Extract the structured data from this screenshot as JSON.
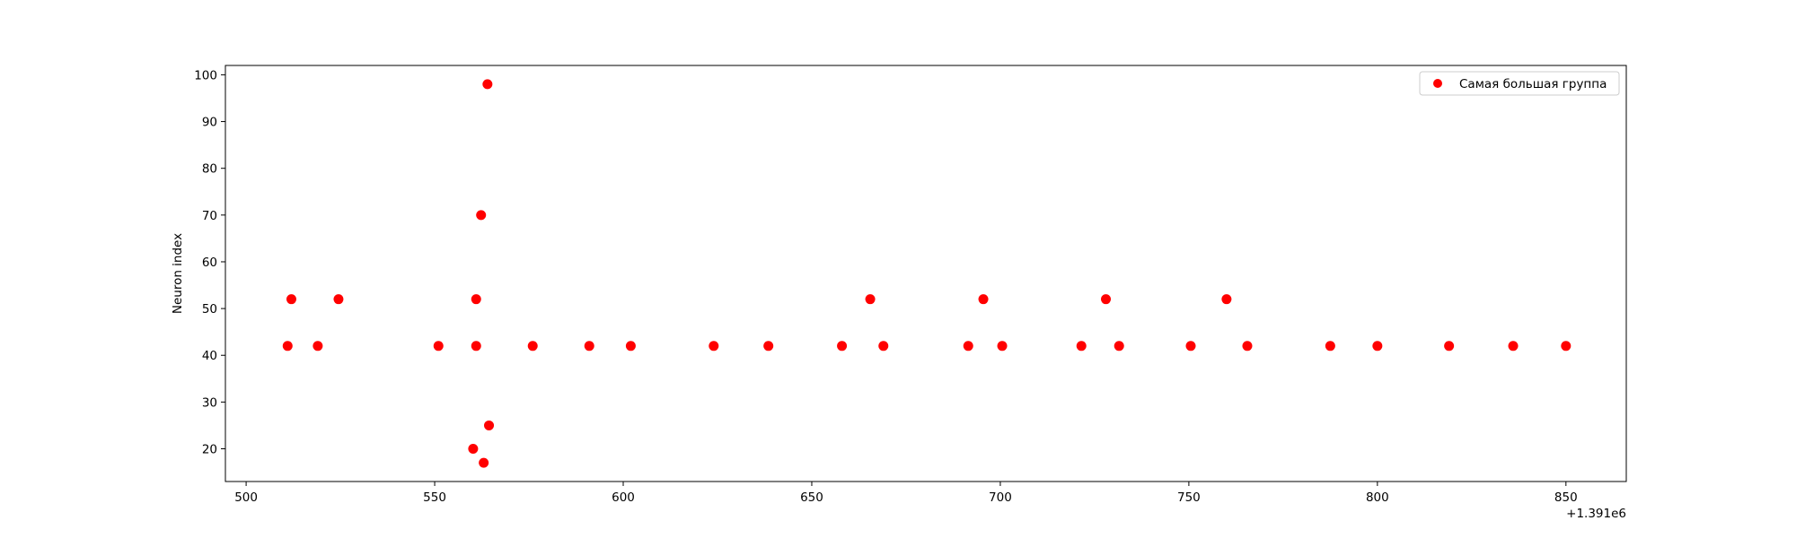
{
  "chart_data": {
    "type": "scatter",
    "title": "",
    "xlabel": "",
    "ylabel": "Neuron index",
    "x_offset_label": "+1.391e6",
    "x_offset": 1391000,
    "xlim": [
      1391494.5,
      1391866
    ],
    "ylim": [
      13,
      102
    ],
    "xticks": [
      500,
      550,
      600,
      650,
      700,
      750,
      800,
      850
    ],
    "yticks": [
      20,
      30,
      40,
      50,
      60,
      70,
      80,
      90,
      100
    ],
    "grid": false,
    "legend_position": "top-right",
    "series": [
      {
        "name": "Самая большая группа",
        "color": "#ff0000",
        "points": [
          {
            "x": 1391511,
            "y": 42
          },
          {
            "x": 1391512,
            "y": 52
          },
          {
            "x": 1391519,
            "y": 42
          },
          {
            "x": 1391524.5,
            "y": 52
          },
          {
            "x": 1391551,
            "y": 42
          },
          {
            "x": 1391560.2,
            "y": 20
          },
          {
            "x": 1391561,
            "y": 52
          },
          {
            "x": 1391561,
            "y": 42
          },
          {
            "x": 1391562.3,
            "y": 70
          },
          {
            "x": 1391563,
            "y": 17
          },
          {
            "x": 1391564,
            "y": 98
          },
          {
            "x": 1391564.4,
            "y": 25
          },
          {
            "x": 1391576,
            "y": 42
          },
          {
            "x": 1391591,
            "y": 42
          },
          {
            "x": 1391602,
            "y": 42
          },
          {
            "x": 1391624,
            "y": 42
          },
          {
            "x": 1391638.5,
            "y": 42
          },
          {
            "x": 1391658,
            "y": 42
          },
          {
            "x": 1391665.5,
            "y": 52
          },
          {
            "x": 1391669,
            "y": 42
          },
          {
            "x": 1391691.5,
            "y": 42
          },
          {
            "x": 1391695.5,
            "y": 52
          },
          {
            "x": 1391700.5,
            "y": 42
          },
          {
            "x": 1391721.5,
            "y": 42
          },
          {
            "x": 1391728,
            "y": 52
          },
          {
            "x": 1391731.5,
            "y": 42
          },
          {
            "x": 1391750.5,
            "y": 42
          },
          {
            "x": 1391760,
            "y": 52
          },
          {
            "x": 1391765.5,
            "y": 42
          },
          {
            "x": 1391787.5,
            "y": 42
          },
          {
            "x": 1391800,
            "y": 42
          },
          {
            "x": 1391819,
            "y": 42
          },
          {
            "x": 1391836,
            "y": 42
          },
          {
            "x": 1391850,
            "y": 42
          }
        ]
      }
    ]
  }
}
